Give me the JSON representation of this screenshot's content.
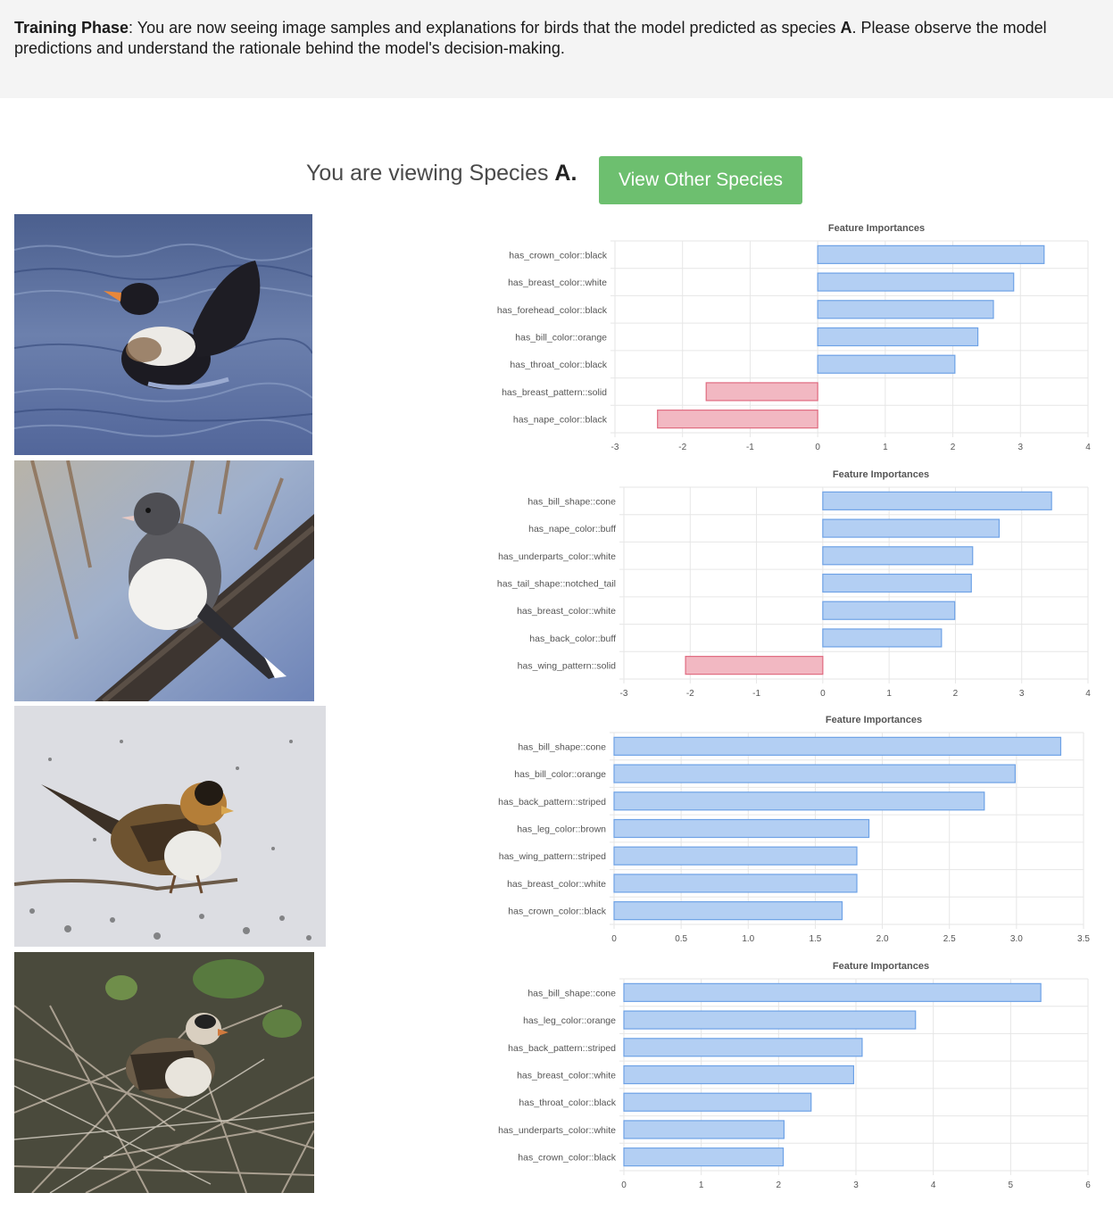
{
  "instructions": {
    "bold_label": "Training Phase",
    "text_before_species": ": You are now seeing image samples and explanations for birds that the model predicted as species ",
    "species": "A",
    "text_after_species": ". Please observe the model predictions and understand the rationale behind the model's decision-making."
  },
  "header": {
    "viewing_prefix": "You are viewing Species ",
    "species": "A.",
    "view_other_label": "View Other Species",
    "button_color": "#6dbf6f"
  },
  "colors": {
    "positive_fill": "#b3cff3",
    "positive_stroke": "#6ea2e6",
    "negative_fill": "#f2b8c2",
    "negative_stroke": "#e06b80",
    "grid": "#e6e6e6"
  },
  "chart_data": [
    {
      "type": "bar",
      "orientation": "horizontal",
      "title": "Feature Importances",
      "categories": [
        "has_crown_color::black",
        "has_breast_color::white",
        "has_forehead_color::black",
        "has_bill_color::orange",
        "has_throat_color::black",
        "has_breast_pattern::solid",
        "has_nape_color::black"
      ],
      "values": [
        3.35,
        2.9,
        2.6,
        2.37,
        2.03,
        -1.65,
        -2.37
      ],
      "xlim": [
        -3,
        4
      ],
      "ticks": [
        -3,
        -2,
        -1,
        0,
        1,
        2,
        3,
        4
      ],
      "tick_labels": [
        "-3",
        "-2",
        "-1",
        "0",
        "1",
        "2",
        "3",
        "4"
      ]
    },
    {
      "type": "bar",
      "orientation": "horizontal",
      "title": "Feature Importances",
      "categories": [
        "has_bill_shape::cone",
        "has_nape_color::buff",
        "has_underparts_color::white",
        "has_tail_shape::notched_tail",
        "has_breast_color::white",
        "has_back_color::buff",
        "has_wing_pattern::solid"
      ],
      "values": [
        3.45,
        2.66,
        2.26,
        2.24,
        1.99,
        1.79,
        -2.07
      ],
      "xlim": [
        -3,
        4
      ],
      "ticks": [
        -3,
        -2,
        -1,
        0,
        1,
        2,
        3,
        4
      ],
      "tick_labels": [
        "-3",
        "-2",
        "-1",
        "0",
        "1",
        "2",
        "3",
        "4"
      ]
    },
    {
      "type": "bar",
      "orientation": "horizontal",
      "title": "Feature Importances",
      "categories": [
        "has_bill_shape::cone",
        "has_bill_color::orange",
        "has_back_pattern::striped",
        "has_leg_color::brown",
        "has_wing_pattern::striped",
        "has_breast_color::white",
        "has_crown_color::black"
      ],
      "values": [
        3.33,
        2.99,
        2.76,
        1.9,
        1.81,
        1.81,
        1.7
      ],
      "xlim": [
        0,
        3.5
      ],
      "ticks": [
        0,
        0.5,
        1,
        1.5,
        2,
        2.5,
        3,
        3.5
      ],
      "tick_labels": [
        "0",
        "0.5",
        "1.0",
        "1.5",
        "2.0",
        "2.5",
        "3.0",
        "3.5"
      ]
    },
    {
      "type": "bar",
      "orientation": "horizontal",
      "title": "Feature Importances",
      "categories": [
        "has_bill_shape::cone",
        "has_leg_color::orange",
        "has_back_pattern::striped",
        "has_breast_color::white",
        "has_throat_color::black",
        "has_underparts_color::white",
        "has_crown_color::black"
      ],
      "values": [
        5.39,
        3.77,
        3.08,
        2.97,
        2.42,
        2.07,
        2.06
      ],
      "xlim": [
        0,
        6
      ],
      "ticks": [
        0,
        1,
        2,
        3,
        4,
        5,
        6
      ],
      "tick_labels": [
        "0",
        "1",
        "2",
        "3",
        "4",
        "5",
        "6"
      ]
    }
  ]
}
